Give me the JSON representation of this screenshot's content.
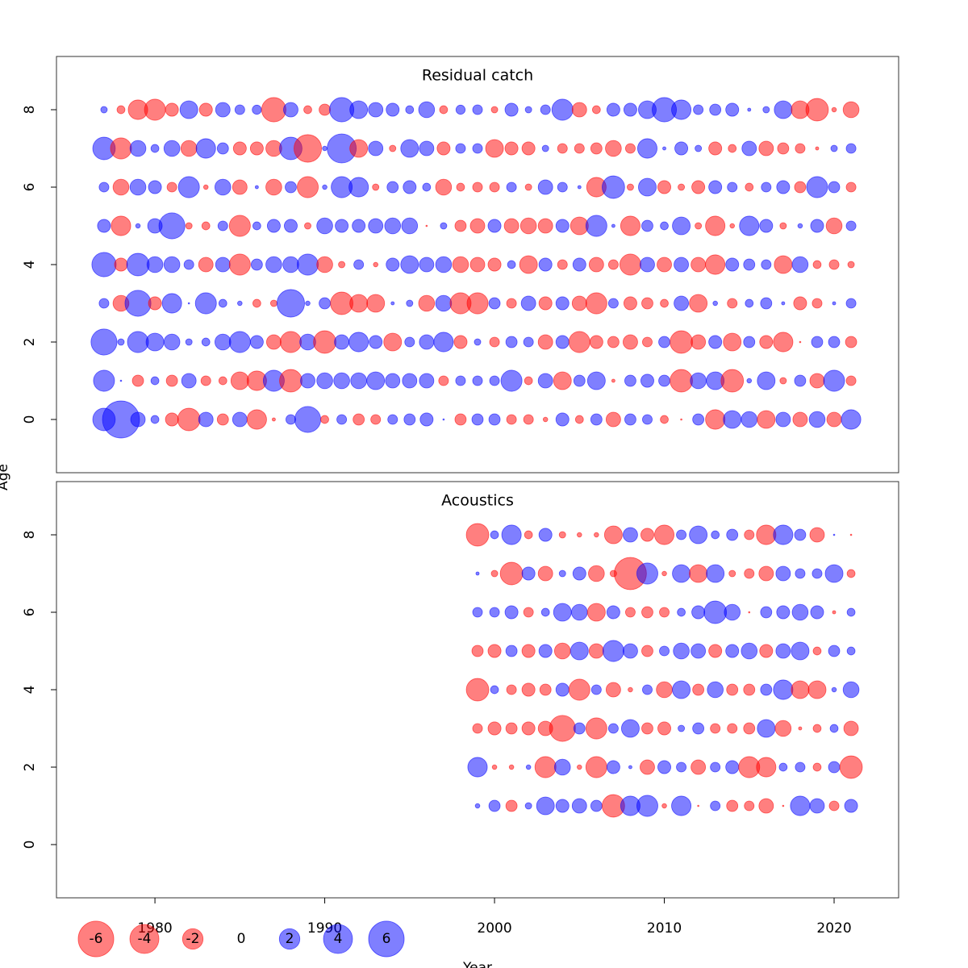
{
  "chart_data": [
    {
      "type": "bubble",
      "title": "Residual catch",
      "ylabel": "Age",
      "x": [
        1977,
        1978,
        1979,
        1980,
        1981,
        1982,
        1983,
        1984,
        1985,
        1986,
        1987,
        1988,
        1989,
        1990,
        1991,
        1992,
        1993,
        1994,
        1995,
        1996,
        1997,
        1998,
        1999,
        2000,
        2001,
        2002,
        2003,
        2004,
        2005,
        2006,
        2007,
        2008,
        2009,
        2010,
        2011,
        2012,
        2013,
        2014,
        2015,
        2016,
        2017,
        2018,
        2019,
        2020,
        2021
      ],
      "ages": [
        0,
        1,
        2,
        3,
        4,
        5,
        6,
        7,
        8
      ],
      "values": [
        [
          2.4,
          6.5,
          1.0,
          0.3,
          -0.8,
          -2.4,
          1.0,
          -0.6,
          1.0,
          -1.8,
          -0.05,
          0.45,
          3.2,
          -0.3,
          0.45,
          -0.6,
          -0.45,
          0.45,
          0.6,
          0.8,
          0.01,
          -0.6,
          0.6,
          0.6,
          -0.45,
          -0.45,
          -0.1,
          0.8,
          -0.3,
          0.6,
          -1.0,
          0.6,
          0.45,
          -0.3,
          -0.01,
          0.6,
          -1.8,
          1.5,
          1.2,
          -1.5,
          1.0,
          -1.0,
          1.2,
          -1.0,
          1.8
        ],
        [
          2.1,
          0.01,
          -0.6,
          0.3,
          -0.6,
          1.0,
          -0.45,
          -0.3,
          -1.5,
          -1.8,
          2.1,
          -2.4,
          1.0,
          1.2,
          1.2,
          1.2,
          1.5,
          1.0,
          1.0,
          1.0,
          -0.45,
          0.45,
          0.45,
          0.45,
          2.1,
          -0.3,
          1.0,
          -1.5,
          0.6,
          1.5,
          -0.05,
          0.6,
          0.8,
          0.6,
          -2.4,
          1.2,
          1.5,
          -2.4,
          0.1,
          1.5,
          -0.2,
          0.6,
          -1.0,
          2.1,
          -0.45
        ],
        [
          3.2,
          0.2,
          2.1,
          1.5,
          1.2,
          0.2,
          0.3,
          1.2,
          2.1,
          0.8,
          -1.0,
          -2.1,
          1.2,
          -2.4,
          1.0,
          1.8,
          0.8,
          -1.5,
          0.45,
          1.0,
          1.8,
          -0.8,
          0.2,
          -0.45,
          0.6,
          0.45,
          -1.0,
          0.8,
          -2.1,
          -0.8,
          -0.6,
          -1.0,
          -0.45,
          0.6,
          -2.4,
          -1.0,
          0.8,
          -1.5,
          0.6,
          -0.8,
          -1.8,
          -0.01,
          0.6,
          0.6,
          -0.6
        ],
        [
          0.45,
          -1.2,
          3.2,
          -0.8,
          1.8,
          0.01,
          2.1,
          0.3,
          0.1,
          -0.3,
          -0.2,
          3.6,
          0.1,
          0.6,
          -2.4,
          -1.5,
          -1.5,
          0.05,
          0.2,
          -1.2,
          1.2,
          -2.1,
          -2.1,
          0.6,
          -0.45,
          1.0,
          -0.8,
          0.8,
          -1.0,
          -2.1,
          0.45,
          -0.8,
          -0.6,
          -0.3,
          1.0,
          -1.5,
          0.1,
          -0.45,
          0.3,
          0.6,
          0.05,
          -0.8,
          -0.45,
          0.05,
          0.45
        ],
        [
          2.8,
          -0.8,
          2.4,
          1.2,
          1.2,
          0.45,
          -1.0,
          1.0,
          -2.1,
          0.6,
          1.2,
          1.2,
          2.1,
          -1.2,
          -0.2,
          0.45,
          -0.1,
          0.8,
          1.5,
          1.0,
          1.2,
          -1.2,
          -1.0,
          -0.8,
          0.3,
          -1.5,
          0.8,
          -0.45,
          0.8,
          -1.0,
          -0.45,
          -2.1,
          1.0,
          -1.0,
          1.0,
          -1.0,
          -1.8,
          0.8,
          0.6,
          0.45,
          -1.5,
          1.2,
          -0.3,
          -0.45,
          -0.2
        ],
        [
          0.8,
          -1.8,
          0.1,
          1.0,
          3.2,
          -0.2,
          -0.3,
          0.45,
          -2.1,
          0.3,
          0.8,
          0.8,
          -0.2,
          1.2,
          0.8,
          0.8,
          1.0,
          1.2,
          1.2,
          -0.01,
          0.2,
          -0.6,
          -1.0,
          0.8,
          -1.0,
          -1.2,
          -1.0,
          0.8,
          -1.5,
          2.1,
          0.05,
          -1.8,
          0.6,
          0.3,
          1.5,
          -0.2,
          -1.8,
          -0.1,
          1.8,
          0.8,
          -0.2,
          0.1,
          0.8,
          -1.2,
          0.45
        ],
        [
          0.45,
          -1.2,
          1.2,
          0.8,
          -0.45,
          2.1,
          -0.1,
          1.2,
          -1.0,
          0.05,
          -1.2,
          0.6,
          -2.1,
          0.1,
          2.1,
          1.8,
          -0.2,
          0.6,
          0.8,
          0.3,
          -1.2,
          -0.3,
          -0.45,
          -0.45,
          0.45,
          -0.2,
          1.0,
          0.45,
          0.05,
          -1.8,
          2.4,
          -0.2,
          1.5,
          -0.8,
          -0.2,
          -0.8,
          0.8,
          0.45,
          -0.3,
          0.45,
          0.8,
          -0.6,
          2.1,
          0.6,
          -0.45
        ],
        [
          2.4,
          -2.1,
          1.2,
          0.3,
          1.2,
          -1.2,
          1.8,
          0.6,
          -0.8,
          -0.8,
          -1.2,
          2.4,
          -3.6,
          0.1,
          4.0,
          -1.5,
          1.0,
          -0.2,
          1.5,
          1.0,
          -0.8,
          0.45,
          0.45,
          -1.5,
          -0.8,
          -0.8,
          0.2,
          -0.45,
          -0.45,
          -0.6,
          -1.2,
          -0.45,
          1.8,
          0.05,
          0.8,
          0.2,
          -0.8,
          -0.3,
          1.0,
          -1.0,
          -0.6,
          -0.45,
          -0.05,
          0.2,
          0.45
        ],
        [
          0.2,
          -0.3,
          -1.8,
          -2.1,
          -0.8,
          1.5,
          -0.8,
          1.0,
          0.45,
          0.4,
          -2.8,
          1.0,
          -0.3,
          -0.6,
          2.8,
          1.5,
          1.0,
          0.8,
          0.3,
          1.2,
          -0.3,
          0.4,
          0.45,
          -0.2,
          0.8,
          0.2,
          0.45,
          2.1,
          -1.0,
          -0.3,
          0.8,
          0.8,
          1.5,
          2.8,
          1.8,
          0.45,
          0.6,
          0.8,
          0.05,
          0.2,
          1.5,
          -1.5,
          -2.4,
          -0.1,
          -1.2
        ]
      ],
      "positive_color": "rgba(0,0,255,0.5)",
      "negative_color": "rgba(255,0,0,0.5)",
      "xlim": [
        1974.2,
        2023.8
      ],
      "ylim": [
        -1.375,
        9.375
      ],
      "yticks": [
        0,
        2,
        4,
        6,
        8
      ]
    },
    {
      "type": "bubble",
      "title": "Acoustics",
      "xlabel": "Year",
      "x": [
        1999,
        2000,
        2001,
        2002,
        2003,
        2004,
        2005,
        2006,
        2007,
        2008,
        2009,
        2010,
        2011,
        2012,
        2013,
        2014,
        2015,
        2016,
        2017,
        2018,
        2019,
        2020,
        2021
      ],
      "ages": [
        1,
        2,
        3,
        4,
        5,
        6,
        7,
        8
      ],
      "values": [
        [
          0.1,
          0.6,
          -0.6,
          0.2,
          1.5,
          0.8,
          1.0,
          0.6,
          -2.4,
          1.8,
          2.1,
          -0.1,
          1.8,
          -0.01,
          0.45,
          -0.6,
          -0.45,
          -1.0,
          -0.01,
          1.8,
          1.0,
          -0.45,
          0.8
        ],
        [
          1.8,
          -0.1,
          -0.1,
          0.1,
          -2.1,
          1.2,
          -0.1,
          -2.1,
          0.8,
          0.05,
          -1.0,
          0.8,
          0.45,
          -1.0,
          0.45,
          0.8,
          -2.1,
          -1.8,
          0.3,
          0.45,
          -0.3,
          0.6,
          -2.4
        ],
        [
          -0.45,
          -0.8,
          -0.6,
          -0.8,
          -1.0,
          -3.2,
          0.6,
          -2.1,
          0.45,
          1.5,
          -0.6,
          -0.8,
          0.2,
          0.6,
          -0.45,
          -0.45,
          -0.6,
          1.5,
          -1.2,
          -0.05,
          -0.3,
          0.3,
          -1.0
        ],
        [
          -2.4,
          0.3,
          -0.45,
          -0.8,
          -0.6,
          0.8,
          -2.1,
          0.45,
          -1.0,
          -0.1,
          0.45,
          -1.2,
          1.5,
          -0.6,
          1.2,
          -0.6,
          -0.6,
          0.6,
          1.8,
          -1.5,
          -1.5,
          0.1,
          1.2
        ],
        [
          -0.6,
          -0.8,
          0.6,
          -0.8,
          0.8,
          -1.2,
          1.5,
          -1.0,
          2.1,
          1.0,
          -0.6,
          0.45,
          1.2,
          1.0,
          -0.8,
          0.8,
          1.2,
          -0.8,
          1.0,
          1.5,
          -0.3,
          0.6,
          0.3
        ],
        [
          0.45,
          0.45,
          0.8,
          -0.45,
          0.3,
          1.5,
          1.2,
          -1.5,
          0.8,
          -0.45,
          -0.6,
          -0.45,
          0.3,
          0.8,
          2.4,
          1.2,
          -0.01,
          0.6,
          0.8,
          1.2,
          0.8,
          -0.05,
          0.3
        ],
        [
          0.05,
          -0.2,
          -2.4,
          0.8,
          -1.0,
          0.2,
          0.8,
          -1.2,
          -0.2,
          -4.9,
          2.1,
          -0.1,
          1.5,
          -1.5,
          1.5,
          -0.2,
          -0.45,
          -1.0,
          1.0,
          0.45,
          0.45,
          1.5,
          -0.3
        ],
        [
          -2.4,
          0.3,
          1.8,
          -0.3,
          0.8,
          -0.2,
          -0.1,
          -0.1,
          -1.5,
          1.0,
          -0.8,
          -1.8,
          0.45,
          1.5,
          0.3,
          0.6,
          -0.45,
          -1.8,
          1.8,
          0.6,
          -1.0,
          0.01,
          -0.01
        ]
      ],
      "positive_color": "rgba(0,0,255,0.5)",
      "negative_color": "rgba(255,0,0,0.5)",
      "xlim": [
        1974.2,
        2023.8
      ],
      "ylim": [
        -1.375,
        9.375
      ],
      "yticks": [
        0,
        2,
        4,
        6,
        8
      ],
      "xticks": [
        1980,
        1990,
        2000,
        2010,
        2020
      ],
      "legend_values": [
        -6,
        -4,
        -2,
        0,
        2,
        4,
        6
      ]
    }
  ]
}
